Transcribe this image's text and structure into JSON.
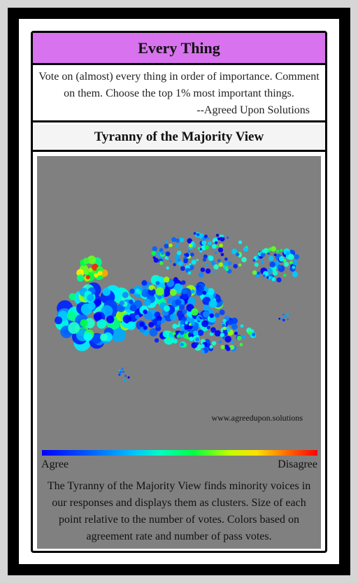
{
  "card": {
    "title": "Every Thing",
    "description": "Vote on (almost) every thing in order of importance. Comment on them. Choose the top 1% most important things.",
    "attribution": "--Agreed Upon Solutions",
    "view_title": "Tyranny of the Majority View"
  },
  "visualization": {
    "watermark": "www.agreedupon.solutions",
    "scale_left": "Agree",
    "scale_right": "Disagree",
    "colors": {
      "background": "#808080",
      "agree": "#0000ff",
      "disagree": "#ff0000"
    },
    "caption": "The Tyranny of the Majority View finds minority voices in our responses and displays them as clusters. Size of each point relative to the number of votes. Colors based on agreement rate and number of pass votes."
  },
  "colors": {
    "title_bar": "#d872ee",
    "view_bar": "#f4f4f4",
    "frame": "#000000"
  }
}
